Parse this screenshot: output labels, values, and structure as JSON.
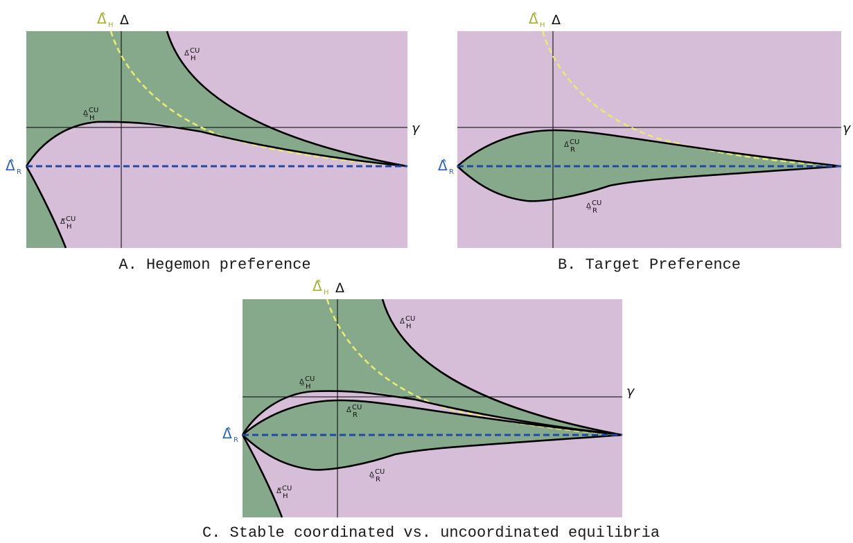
{
  "colors": {
    "green_region": "#85a98a",
    "pink_region": "#d6bdd8",
    "hegemon_ideal": "#e9ea6e",
    "hegemon_label": "#a5b22f",
    "target_ideal": "#1f49a6",
    "target_label": "#2b63c2"
  },
  "labels": {
    "gamma": "γ",
    "delta": "Δ",
    "delta_hat": "Δ̂",
    "sub_h": "H",
    "sub_r": "R",
    "upper_h": "Δ̄",
    "lower_h": "Δ̲",
    "lowest_h": "Δ̿",
    "upper_r": "Δ̄",
    "lower_r": "Δ̲",
    "sub_h_cu": "H",
    "sub_r_cu": "R",
    "sup_cu": "CU"
  },
  "panels": {
    "a": {
      "title": "A. Hegemon preference"
    },
    "b": {
      "title": "B. Target Preference"
    },
    "c": {
      "title": "C. Stable coordinated vs. uncoordinated equilibria"
    }
  }
}
